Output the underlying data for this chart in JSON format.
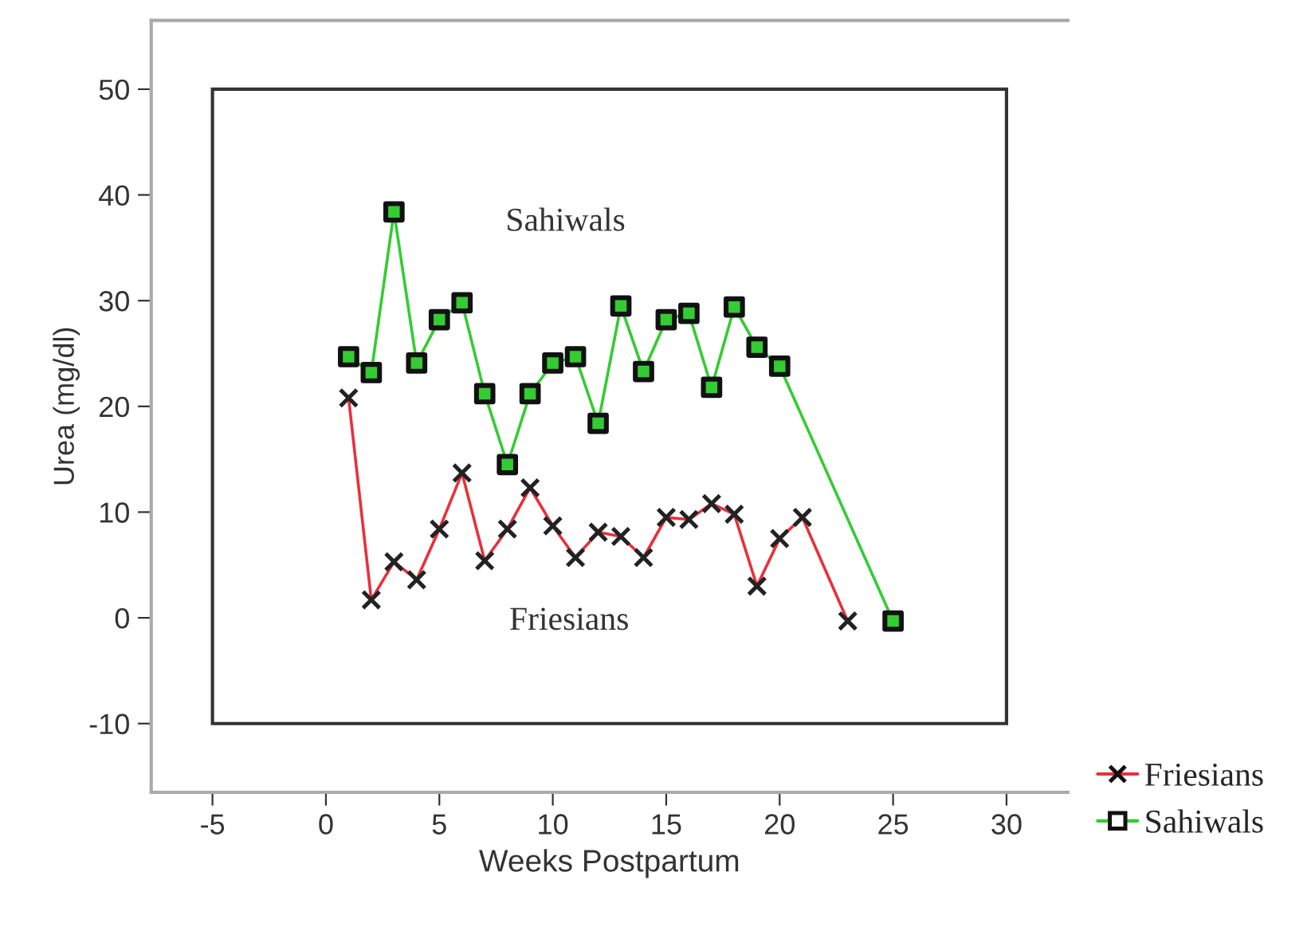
{
  "chart_data": {
    "type": "line",
    "xlabel": "Weeks Postpartum",
    "ylabel": "Urea (mg/dl)",
    "xlim": [
      -7.7,
      32.7
    ],
    "ylim": [
      -16.5,
      56.5
    ],
    "xticks": [
      -5,
      0,
      5,
      10,
      15,
      20,
      25,
      30
    ],
    "yticks": [
      -10,
      0,
      10,
      20,
      30,
      40,
      50
    ],
    "grid": false,
    "legend": "bottom right",
    "series": [
      {
        "name": "Friesians",
        "color": "#e8303a",
        "marker": "cross",
        "x": [
          1,
          2,
          3,
          4,
          5,
          6,
          7,
          8,
          9,
          10,
          11,
          12,
          13,
          14,
          15,
          16,
          17,
          18,
          19,
          20,
          21,
          23
        ],
        "values": [
          20.8,
          1.7,
          5.3,
          3.6,
          8.4,
          13.7,
          5.4,
          8.4,
          12.3,
          8.7,
          5.7,
          8.1,
          7.7,
          5.7,
          9.5,
          9.3,
          10.8,
          9.8,
          3.0,
          7.5,
          9.5,
          -0.3
        ]
      },
      {
        "name": "Sahiwals",
        "color": "#33cc33",
        "marker": "square",
        "x": [
          1,
          2,
          3,
          4,
          5,
          6,
          7,
          8,
          9,
          10,
          11,
          12,
          13,
          14,
          15,
          16,
          17,
          18,
          19,
          20,
          25
        ],
        "values": [
          24.7,
          23.2,
          38.4,
          24.1,
          28.2,
          29.8,
          21.2,
          14.5,
          21.2,
          24.1,
          24.7,
          18.4,
          29.5,
          23.3,
          28.2,
          28.8,
          21.8,
          29.4,
          25.6,
          23.8,
          -0.3
        ]
      }
    ],
    "annotations": [
      "Sahiwals",
      "Friesians"
    ]
  }
}
